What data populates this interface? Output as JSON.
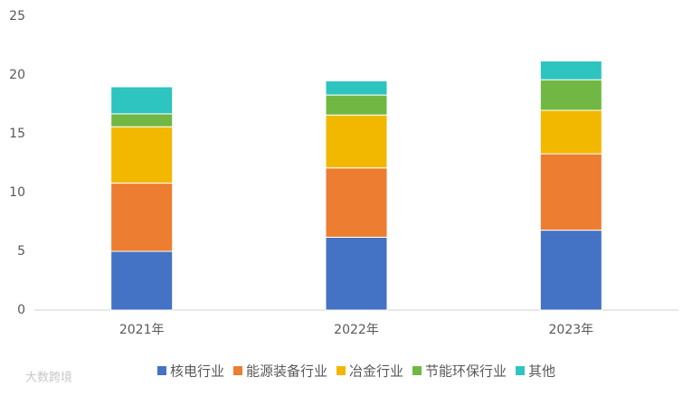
{
  "chart_data": {
    "type": "stacked_bar",
    "categories": [
      "2021年",
      "2022年",
      "2023年"
    ],
    "series": [
      {
        "name": "核电行业",
        "color": "#4472c4",
        "values": [
          5.0,
          6.2,
          6.8
        ]
      },
      {
        "name": "能源装备行业",
        "color": "#ed7d31",
        "values": [
          5.8,
          5.9,
          6.5
        ]
      },
      {
        "name": "冶金行业",
        "color": "#f2b800",
        "values": [
          4.8,
          4.5,
          3.7
        ]
      },
      {
        "name": "节能环保行业",
        "color": "#70b843",
        "values": [
          1.1,
          1.7,
          2.6
        ]
      },
      {
        "name": "其他",
        "color": "#2ec4c0",
        "values": [
          2.3,
          1.2,
          1.6
        ]
      }
    ],
    "ylim": [
      0,
      25
    ],
    "yticks": [
      0,
      5,
      10,
      15,
      20,
      25
    ],
    "grid": false,
    "legend": "bottom",
    "watermark": "大数跨境"
  }
}
